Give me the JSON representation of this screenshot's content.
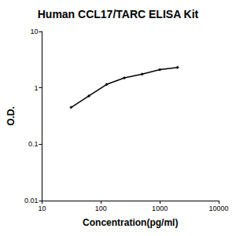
{
  "chart_data": {
    "type": "line",
    "title": "Human CCL17/TARC ELISA Kit",
    "x_label": "Concentration(pg/ml)",
    "y_label": "O.D.",
    "x": [
      31.25,
      62.5,
      125,
      250,
      500,
      1000,
      2000
    ],
    "values": [
      0.45,
      0.72,
      1.15,
      1.5,
      1.75,
      2.1,
      2.3
    ],
    "color": "#000000",
    "marker": "diamond",
    "line_style": "solid",
    "log": true,
    "grid": false,
    "xlim": [
      10,
      10000
    ],
    "xticks": [
      10,
      100,
      1000,
      10000
    ],
    "ylim": [
      0.01,
      10
    ],
    "yticks": [
      0.01,
      0.1,
      1,
      10
    ]
  }
}
